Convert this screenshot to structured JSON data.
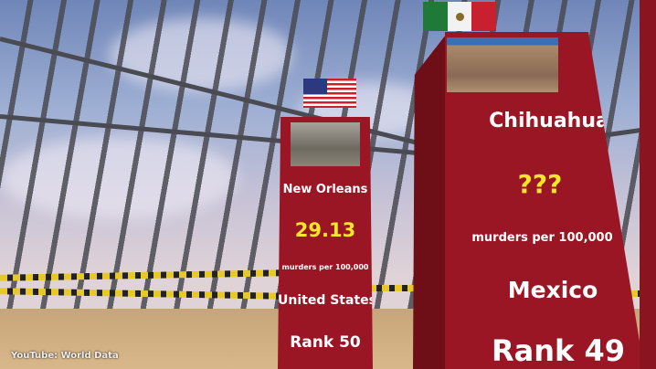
{
  "watermark": "YouTube: World Data",
  "left_card": {
    "city": "New Orleans",
    "value": "29.13",
    "unit": "murders per 100,000",
    "country": "United States",
    "rank": "Rank 50",
    "flag": "usa-flag-icon"
  },
  "right_card": {
    "city": "Chihuahua",
    "value": "???",
    "unit": "murders per 100,000",
    "country": "Mexico",
    "rank": "Rank 49",
    "flag": "mexico-flag-icon"
  },
  "colors": {
    "pillar": "#9a1624",
    "value": "#f5e62c"
  }
}
